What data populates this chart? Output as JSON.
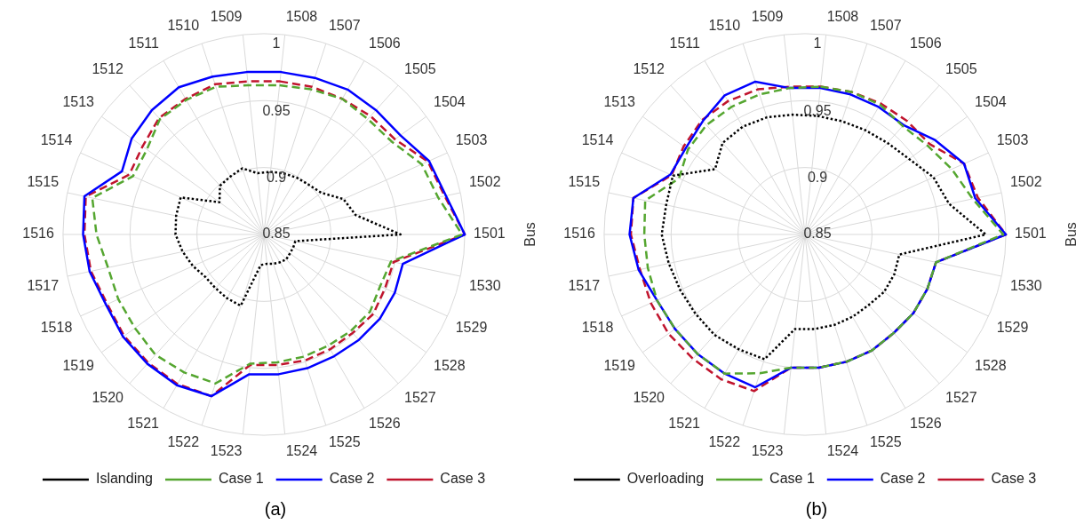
{
  "chart_data": [
    {
      "type": "radar",
      "xlabel": "Bus",
      "annotations": [
        "(a)"
      ],
      "legend": "bottom",
      "grid": true,
      "marker": "none",
      "ylim": [
        0.85,
        1
      ],
      "yticks": [
        0.85,
        0.9,
        0.95,
        1
      ],
      "categories": [
        "1508",
        "1507",
        "1506",
        "1505",
        "1504",
        "1503",
        "1502",
        "1501",
        "1530",
        "1529",
        "1528",
        "1527",
        "1526",
        "1525",
        "1524",
        "1523",
        "1522",
        "1521",
        "1520",
        "1519",
        "1518",
        "1517",
        "1516",
        "1515",
        "1514",
        "1513",
        "1512",
        "1511",
        "1510",
        "1509"
      ],
      "series": [
        {
          "name": "Islanding",
          "color": "#000000",
          "line_style": "dotted",
          "values": [
            0.897,
            0.898,
            0.899,
            0.9,
            0.903,
            0.915,
            0.92,
            0.952,
            0.874,
            0.874,
            0.874,
            0.875,
            0.874,
            0.873,
            0.872,
            0.873,
            0.906,
            0.905,
            0.904,
            0.904,
            0.908,
            0.912,
            0.916,
            0.917,
            0.918,
            0.891,
            0.899,
            0.9,
            0.902,
            0.896
          ]
        },
        {
          "name": "Case 1",
          "color": "#55a630",
          "line_style": "dashed",
          "values": [
            0.962,
            0.964,
            0.967,
            0.966,
            0.968,
            0.979,
            0.983,
            0.998,
            0.947,
            0.945,
            0.948,
            0.947,
            0.946,
            0.946,
            0.946,
            0.947,
            0.967,
            0.969,
            0.971,
            0.969,
            0.969,
            0.969,
            0.975,
            0.981,
            0.957,
            0.958,
            0.966,
            0.966,
            0.966,
            0.962
          ]
        },
        {
          "name": "Case 2",
          "color": "#0000ff",
          "line_style": "solid",
          "values": [
            0.972,
            0.973,
            0.975,
            0.975,
            0.976,
            0.985,
            0.989,
            1.0,
            0.956,
            0.957,
            0.957,
            0.956,
            0.955,
            0.955,
            0.955,
            0.955,
            0.977,
            0.98,
            0.98,
            0.98,
            0.979,
            0.983,
            0.985,
            0.987,
            0.966,
            0.972,
            0.975,
            0.977,
            0.974,
            0.972
          ]
        },
        {
          "name": "Case 3",
          "color": "#c0142d",
          "line_style": "dashed",
          "values": [
            0.965,
            0.966,
            0.967,
            0.969,
            0.971,
            0.984,
            0.988,
            1.0,
            0.949,
            0.949,
            0.951,
            0.949,
            0.949,
            0.949,
            0.948,
            0.948,
            0.977,
            0.979,
            0.979,
            0.979,
            0.978,
            0.982,
            0.984,
            0.986,
            0.96,
            0.962,
            0.967,
            0.967,
            0.968,
            0.965
          ]
        }
      ]
    },
    {
      "type": "radar",
      "xlabel": "Bus",
      "annotations": [
        "(b)"
      ],
      "legend": "bottom",
      "grid": true,
      "marker": "none",
      "ylim": [
        0.85,
        1
      ],
      "yticks": [
        0.85,
        0.9,
        0.95,
        1
      ],
      "categories": [
        "1508",
        "1507",
        "1506",
        "1505",
        "1504",
        "1503",
        "1502",
        "1501",
        "1530",
        "1529",
        "1528",
        "1527",
        "1526",
        "1525",
        "1524",
        "1523",
        "1522",
        "1521",
        "1520",
        "1519",
        "1518",
        "1517",
        "1516",
        "1515",
        "1514",
        "1513",
        "1512",
        "1511",
        "1510",
        "1509"
      ],
      "series": [
        {
          "name": "Overloading",
          "color": "#000000",
          "line_style": "dotted",
          "values": [
            0.939,
            0.939,
            0.94,
            0.942,
            0.946,
            0.955,
            0.96,
            0.985,
            0.922,
            0.923,
            0.923,
            0.921,
            0.921,
            0.921,
            0.921,
            0.921,
            0.948,
            0.949,
            0.951,
            0.951,
            0.952,
            0.954,
            0.957,
            0.956,
            0.958,
            0.933,
            0.942,
            0.943,
            0.942,
            0.94
          ]
        },
        {
          "name": "Case 1",
          "color": "#55a630",
          "line_style": "dashed",
          "values": [
            0.961,
            0.962,
            0.962,
            0.959,
            0.963,
            0.97,
            0.978,
            0.998,
            0.95,
            0.95,
            0.95,
            0.949,
            0.95,
            0.95,
            0.95,
            0.95,
            0.959,
            0.97,
            0.97,
            0.97,
            0.971,
            0.97,
            0.97,
            0.972,
            0.953,
            0.958,
            0.96,
            0.96,
            0.96,
            0.96
          ]
        },
        {
          "name": "Case 2",
          "color": "#0000ff",
          "line_style": "solid",
          "values": [
            0.96,
            0.96,
            0.96,
            0.96,
            0.97,
            0.98,
            0.98,
            1.0,
            0.95,
            0.95,
            0.95,
            0.949,
            0.95,
            0.95,
            0.95,
            0.95,
            0.97,
            0.97,
            0.97,
            0.97,
            0.971,
            0.977,
            0.981,
            0.981,
            0.96,
            0.96,
            0.964,
            0.97,
            0.97,
            0.96
          ]
        },
        {
          "name": "Case 3",
          "color": "#c0142d",
          "line_style": "dashed",
          "values": [
            0.961,
            0.962,
            0.963,
            0.964,
            0.965,
            0.98,
            0.982,
            1.0,
            0.95,
            0.95,
            0.95,
            0.949,
            0.95,
            0.95,
            0.95,
            0.95,
            0.973,
            0.975,
            0.975,
            0.976,
            0.976,
            0.976,
            0.98,
            0.981,
            0.959,
            0.962,
            0.965,
            0.965,
            0.964,
            0.961
          ]
        }
      ]
    }
  ]
}
